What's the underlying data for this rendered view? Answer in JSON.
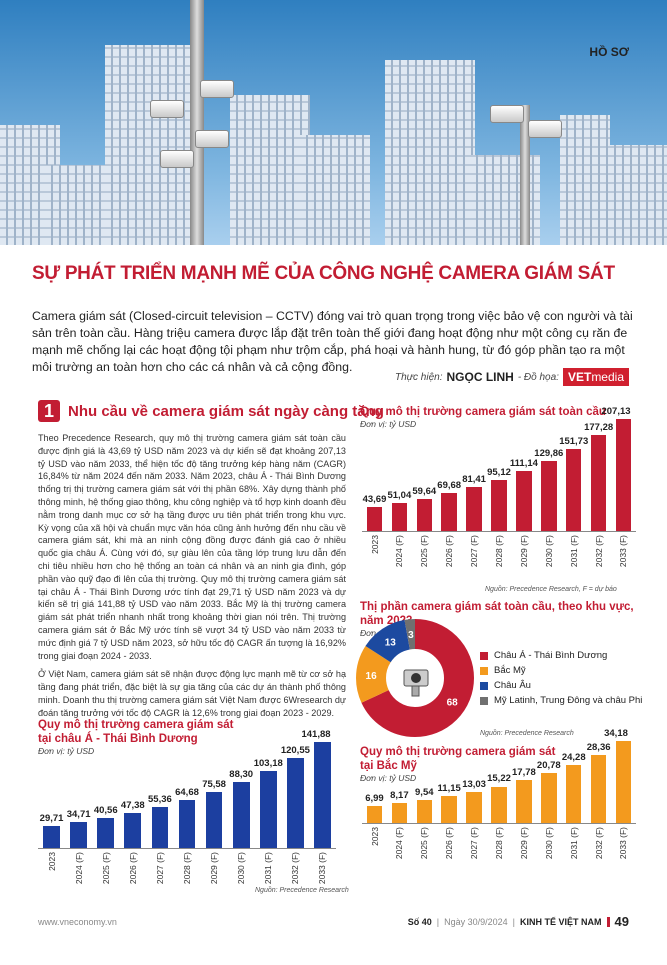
{
  "section_tag": "HỒ SƠ",
  "title": "SỰ PHÁT TRIỂN MẠNH MẼ CỦA CÔNG NGHỆ CAMERA GIÁM SÁT",
  "lead": "Camera giám sát (Closed-circuit television – CCTV) đóng vai trò quan trọng trong việc bảo vệ con người và tài sản trên toàn cầu. Hàng triệu camera được lắp đặt trên toàn thế giới đang hoạt động như một công cụ răn đe mạnh mẽ chống lại các hoạt động tội phạm như trộm cắp, phá hoại và hành hung, từ đó góp phần tạo ra một môi trường an toàn hơn cho các cá nhân và cả cộng đồng.",
  "byline": {
    "label": "Thực hiện:",
    "author": "NGỌC LINH",
    "graphics_label": "- Đồ họa:",
    "logo_bold": "VET",
    "logo_light": "media"
  },
  "section": {
    "number": "1",
    "title": "Nhu cầu về camera giám sát ngày càng tăng"
  },
  "body": [
    "Theo Precedence Research, quy mô thị trường camera giám sát toàn cầu được định giá là 43,69 tỷ USD năm 2023 và dự kiến sẽ đạt khoảng 207,13 tỷ USD vào năm 2033, thể hiện tốc độ tăng trưởng kép hàng năm (CAGR) 16,84% từ năm 2024 đến năm 2033. Năm 2023, châu Á - Thái Bình Dương thống trị thị trường camera giám sát với thị phần 68%. Xây dựng thành phố thông minh, hệ thống giao thông, khu công nghiệp và tổ hợp kinh doanh đều nằm trong danh mục cơ sở hạ tầng được ưu tiên phát triển trong khu vực. Kỳ vọng của xã hội và chuẩn mực văn hóa cũng ảnh hưởng đến nhu cầu về camera giám sát, khi mà an ninh cộng đồng được đánh giá cao ở nhiều quốc gia châu Á. Cùng với đó, sự giàu lên của tầng lớp trung lưu dẫn đến chi tiêu nhiều hơn cho hệ thống an toàn cá nhân và an ninh gia đình, góp phần vào quỹ đạo đi lên của thị trường. Quy mô thị trường camera giám sát tại châu Á - Thái Bình Dương ước tính đạt 29,71 tỷ USD năm 2023 và dự kiến sẽ trị giá 141,88 tỷ USD vào năm 2033. Bắc Mỹ là thị trường camera giám sát phát triển nhanh nhất trong khoảng thời gian nói trên. Thị trường camera giám sát ở Bắc Mỹ ước tính sẽ vượt 34 tỷ USD vào năm 2033 từ mức định giá 7 tỷ USD năm 2023, sở hữu tốc độ CAGR ấn tượng là 16,92% trong giai đoạn 2024 - 2033.",
    "Ở Việt Nam, camera giám sát sẽ nhận được động lực mạnh mẽ từ cơ sở hạ tầng đang phát triển, đặc biệt là sự gia tăng của các dự án thành phố thông minh. Doanh thu thị trường camera giám sát Việt Nam được 6Wresearch dự đoán tăng trưởng với tốc độ CAGR là 12,6% trong giai đoạn 2023 - 2029."
  ],
  "footer": {
    "website": "www.vneconomy.vn",
    "issue": "Số 40",
    "date": "Ngày 30/9/2024",
    "magazine": "KINH TẾ VIỆT NAM",
    "page": "49"
  },
  "chart_data": [
    {
      "type": "bar",
      "title": "Quy mô thị trường camera giám sát toàn cầu",
      "unit": "Đơn vị: tỷ USD",
      "color": "#c21d33",
      "categories": [
        "2023",
        "2024 (F)",
        "2025 (F)",
        "2026 (F)",
        "2027 (F)",
        "2028 (F)",
        "2029 (F)",
        "2030 (F)",
        "2031 (F)",
        "2032 (F)",
        "2033 (F)"
      ],
      "values": [
        43.69,
        51.04,
        59.64,
        69.68,
        81.41,
        95.12,
        111.14,
        129.86,
        151.73,
        177.28,
        207.13
      ],
      "labels": [
        "43,69",
        "51,04",
        "59,64",
        "69,68",
        "81,41",
        "95,12",
        "111,14",
        "129,86",
        "151,73",
        "177,28",
        "207,13"
      ],
      "source": "Nguồn: Precedence Research, F = dự báo"
    },
    {
      "type": "pie",
      "title": "Thị phần camera giám sát toàn cầu, theo khu vực, năm 2023",
      "unit": "Đơn vị: %",
      "slices": [
        {
          "name": "Châu Á - Thái Bình Dương",
          "value": 68,
          "color": "#c21d33"
        },
        {
          "name": "Bắc Mỹ",
          "value": 16,
          "color": "#f39a1e"
        },
        {
          "name": "Châu Âu",
          "value": 13,
          "color": "#1c4aa0"
        },
        {
          "name": "Mỹ Latinh, Trung Đông và châu Phi",
          "value": 3,
          "color": "#707070"
        }
      ],
      "source": "Nguồn: Precedence Research"
    },
    {
      "type": "bar",
      "title": "Quy mô thị trường camera giám sát tại châu Á - Thái Bình Dương",
      "unit": "Đơn vị: tỷ USD",
      "color": "#1c3fa0",
      "categories": [
        "2023",
        "2024 (F)",
        "2025 (F)",
        "2026 (F)",
        "2027 (F)",
        "2028 (F)",
        "2029 (F)",
        "2030 (F)",
        "2031 (F)",
        "2032 (F)",
        "2033 (F)"
      ],
      "values": [
        29.71,
        34.71,
        40.56,
        47.38,
        55.36,
        64.68,
        75.58,
        88.3,
        103.18,
        120.55,
        141.88
      ],
      "labels": [
        "29,71",
        "34,71",
        "40,56",
        "47,38",
        "55,36",
        "64,68",
        "75,58",
        "88,30",
        "103,18",
        "120,55",
        "141,88"
      ],
      "source": "Nguồn: Precedence Research"
    },
    {
      "type": "bar",
      "title": "Quy mô thị trường camera giám sát tại Bắc Mỹ",
      "unit": "Đơn vị: tỷ USD",
      "color": "#f39a1e",
      "categories": [
        "2023",
        "2024 (F)",
        "2025 (F)",
        "2026 (F)",
        "2027 (F)",
        "2028 (F)",
        "2029 (F)",
        "2030 (F)",
        "2031 (F)",
        "2032 (F)",
        "2033 (F)"
      ],
      "values": [
        6.99,
        8.17,
        9.54,
        11.15,
        13.03,
        15.22,
        17.78,
        20.78,
        24.28,
        28.36,
        34.18
      ],
      "labels": [
        "6,99",
        "8,17",
        "9,54",
        "11,15",
        "13,03",
        "15,22",
        "17,78",
        "20,78",
        "24,28",
        "28,36",
        "34,18"
      ],
      "source": ""
    }
  ]
}
